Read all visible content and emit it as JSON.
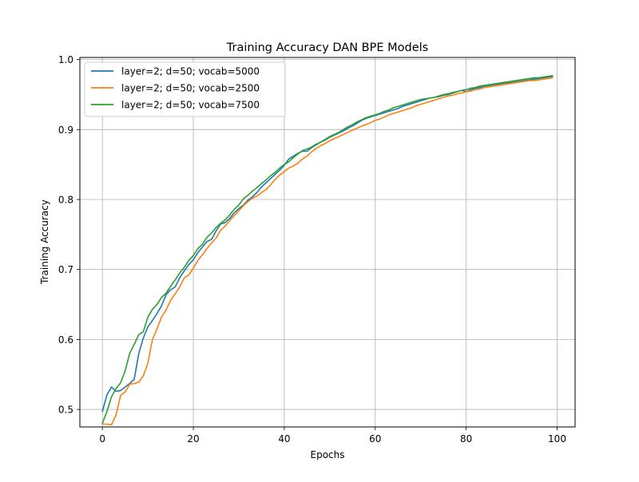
{
  "chart_data": {
    "type": "line",
    "title": "Training Accuracy DAN BPE Models",
    "xlabel": "Epochs",
    "ylabel": "Training Accuracy",
    "xlim": [
      -4.95,
      103.95
    ],
    "ylim": [
      0.475,
      1.003
    ],
    "xticks": [
      0,
      20,
      40,
      60,
      80,
      100
    ],
    "xtick_labels": [
      "0",
      "20",
      "40",
      "60",
      "80",
      "100"
    ],
    "yticks": [
      0.5,
      0.6,
      0.7,
      0.8,
      0.9,
      1.0
    ],
    "ytick_labels": [
      "0.5",
      "0.6",
      "0.7",
      "0.8",
      "0.9",
      "1.0"
    ],
    "grid": true,
    "legend_position": "top-left",
    "series": [
      {
        "name": "layer=2; d=50; vocab=5000",
        "color": "#1f77b4",
        "values": [
          0.497,
          0.521,
          0.532,
          0.526,
          0.527,
          0.532,
          0.537,
          0.543,
          0.58,
          0.602,
          0.618,
          0.627,
          0.637,
          0.648,
          0.664,
          0.671,
          0.675,
          0.688,
          0.698,
          0.707,
          0.714,
          0.724,
          0.732,
          0.74,
          0.743,
          0.755,
          0.765,
          0.767,
          0.773,
          0.781,
          0.787,
          0.792,
          0.799,
          0.804,
          0.81,
          0.818,
          0.824,
          0.83,
          0.836,
          0.842,
          0.849,
          0.858,
          0.862,
          0.866,
          0.869,
          0.869,
          0.874,
          0.878,
          0.882,
          0.885,
          0.889,
          0.892,
          0.895,
          0.898,
          0.902,
          0.905,
          0.909,
          0.913,
          0.916,
          0.918,
          0.92,
          0.922,
          0.924,
          0.926,
          0.928,
          0.93,
          0.933,
          0.935,
          0.937,
          0.939,
          0.941,
          0.943,
          0.945,
          0.946,
          0.947,
          0.949,
          0.95,
          0.952,
          0.954,
          0.956,
          0.954,
          0.957,
          0.959,
          0.96,
          0.962,
          0.963,
          0.964,
          0.965,
          0.966,
          0.967,
          0.967,
          0.968,
          0.969,
          0.97,
          0.971,
          0.972,
          0.973,
          0.974,
          0.975,
          0.976
        ]
      },
      {
        "name": "layer=2; d=50; vocab=2500",
        "color": "#ff7f0e",
        "values": [
          0.479,
          0.479,
          0.478,
          0.492,
          0.52,
          0.525,
          0.536,
          0.537,
          0.539,
          0.548,
          0.566,
          0.6,
          0.615,
          0.632,
          0.642,
          0.656,
          0.665,
          0.675,
          0.688,
          0.692,
          0.702,
          0.713,
          0.721,
          0.73,
          0.738,
          0.745,
          0.756,
          0.762,
          0.77,
          0.777,
          0.784,
          0.791,
          0.797,
          0.802,
          0.805,
          0.81,
          0.814,
          0.821,
          0.829,
          0.835,
          0.84,
          0.845,
          0.848,
          0.852,
          0.858,
          0.862,
          0.868,
          0.873,
          0.877,
          0.88,
          0.884,
          0.887,
          0.89,
          0.893,
          0.896,
          0.899,
          0.902,
          0.905,
          0.907,
          0.91,
          0.913,
          0.915,
          0.918,
          0.921,
          0.923,
          0.925,
          0.927,
          0.929,
          0.931,
          0.934,
          0.936,
          0.938,
          0.94,
          0.942,
          0.944,
          0.946,
          0.948,
          0.949,
          0.951,
          0.952,
          0.954,
          0.955,
          0.957,
          0.958,
          0.96,
          0.961,
          0.962,
          0.963,
          0.964,
          0.965,
          0.966,
          0.967,
          0.968,
          0.969,
          0.97,
          0.97,
          0.971,
          0.972,
          0.973,
          0.974
        ]
      },
      {
        "name": "layer=2; d=50; vocab=7500",
        "color": "#2ca02c",
        "values": [
          0.48,
          0.497,
          0.518,
          0.53,
          0.538,
          0.555,
          0.58,
          0.593,
          0.607,
          0.611,
          0.632,
          0.643,
          0.65,
          0.66,
          0.666,
          0.676,
          0.685,
          0.695,
          0.703,
          0.713,
          0.72,
          0.73,
          0.736,
          0.746,
          0.752,
          0.76,
          0.766,
          0.771,
          0.778,
          0.786,
          0.792,
          0.801,
          0.806,
          0.812,
          0.817,
          0.823,
          0.828,
          0.834,
          0.839,
          0.845,
          0.85,
          0.854,
          0.86,
          0.865,
          0.87,
          0.872,
          0.875,
          0.879,
          0.882,
          0.886,
          0.89,
          0.893,
          0.896,
          0.9,
          0.904,
          0.907,
          0.911,
          0.914,
          0.917,
          0.919,
          0.921,
          0.923,
          0.926,
          0.928,
          0.931,
          0.933,
          0.935,
          0.937,
          0.939,
          0.941,
          0.943,
          0.944,
          0.945,
          0.946,
          0.948,
          0.95,
          0.951,
          0.953,
          0.954,
          0.956,
          0.957,
          0.959,
          0.96,
          0.962,
          0.963,
          0.964,
          0.965,
          0.966,
          0.967,
          0.968,
          0.969,
          0.97,
          0.971,
          0.972,
          0.973,
          0.974,
          0.974,
          0.975,
          0.976,
          0.977
        ]
      }
    ]
  }
}
